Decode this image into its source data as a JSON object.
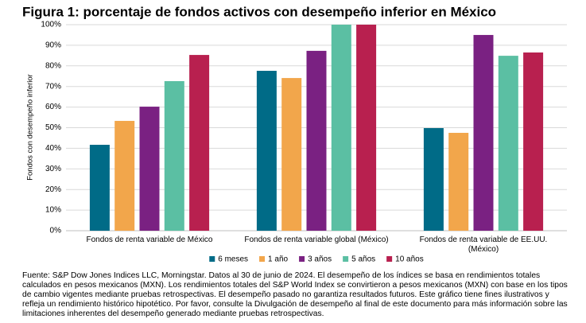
{
  "chart_data": {
    "type": "bar",
    "title": "Figura 1: porcentaje de fondos activos con desempeño inferior en México",
    "y_label": "Fondos con desempeño inferior",
    "categories": [
      "Fondos de renta variable de México",
      "Fondos de renta variable global (México)",
      "Fondos de renta variable de EE.UU. (México)"
    ],
    "series": [
      {
        "name": "6 meses",
        "color": "#006b87",
        "values": [
          41.7,
          77.6,
          49.8
        ]
      },
      {
        "name": "1 año",
        "color": "#f2a64b",
        "values": [
          53.3,
          74.1,
          47.5
        ]
      },
      {
        "name": "3 años",
        "color": "#7a2182",
        "values": [
          60.2,
          87.3,
          95.0
        ]
      },
      {
        "name": "5 años",
        "color": "#5bbfa3",
        "values": [
          72.6,
          100,
          84.9
        ]
      },
      {
        "name": "10 años",
        "color": "#b8204f",
        "values": [
          85.3,
          100,
          86.5
        ]
      }
    ],
    "ylim": [
      0,
      100
    ],
    "yticks": [
      {
        "value": 0,
        "label": "0%"
      },
      {
        "value": 10,
        "label": "10%"
      },
      {
        "value": 20,
        "label": "20%"
      },
      {
        "value": 30,
        "label": "30%"
      },
      {
        "value": 40,
        "label": "40%"
      },
      {
        "value": 50,
        "label": "50%"
      },
      {
        "value": 60,
        "label": "60%"
      },
      {
        "value": 70,
        "label": "70%"
      },
      {
        "value": 80,
        "label": "80%"
      },
      {
        "value": 90,
        "label": "90%"
      },
      {
        "value": 100,
        "label": "100%"
      }
    ],
    "grid": true,
    "legend": "bottom",
    "source": "Fuente: S&P Dow Jones Indices LLC, Morningstar. Datos al 30 de junio de 2024. El desempeño de los índices se basa en rendimientos totales calculados en pesos mexicanos (MXN). Los rendimientos totales del S&P World Index se convirtieron a pesos mexicanos (MXN) con base en los tipos de cambio vigentes mediante pruebas retrospectivas. El desempeño pasado no garantiza resultados futuros. Este gráfico tiene fines ilustrativos y refleja un rendimiento histórico hipotético. Por favor, consulte la Divulgación de desempeño al final de este documento para más información sobre las limitaciones inherentes del desempeño generado mediante pruebas retrospectivas."
  }
}
